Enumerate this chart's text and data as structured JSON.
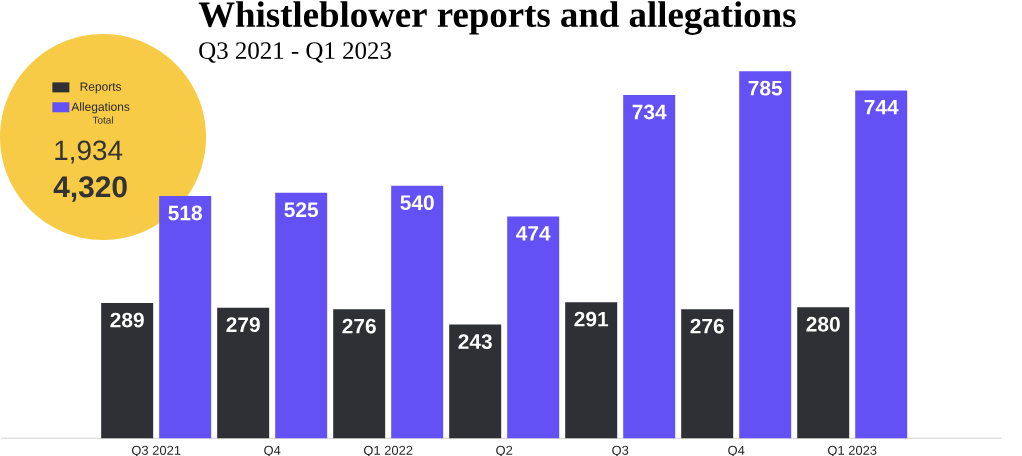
{
  "chart_data": {
    "type": "bar",
    "title": "Whistleblower reports and allegations",
    "subtitle": "Q3 2021 - Q1 2023",
    "categories": [
      "Q3 2021",
      "Q4",
      "Q1 2022",
      "Q2",
      "Q3",
      "Q4",
      "Q1 2023"
    ],
    "series": [
      {
        "name": "Reports",
        "color": "#2e3036",
        "values": [
          289,
          279,
          276,
          243,
          291,
          276,
          280
        ]
      },
      {
        "name": "Allegations",
        "color": "#6451f5",
        "values": [
          518,
          525,
          540,
          474,
          734,
          785,
          744
        ]
      }
    ],
    "data_labels": true,
    "legend": "top left",
    "annotations": [
      "Total",
      "1,934",
      "4,320"
    ]
  }
}
